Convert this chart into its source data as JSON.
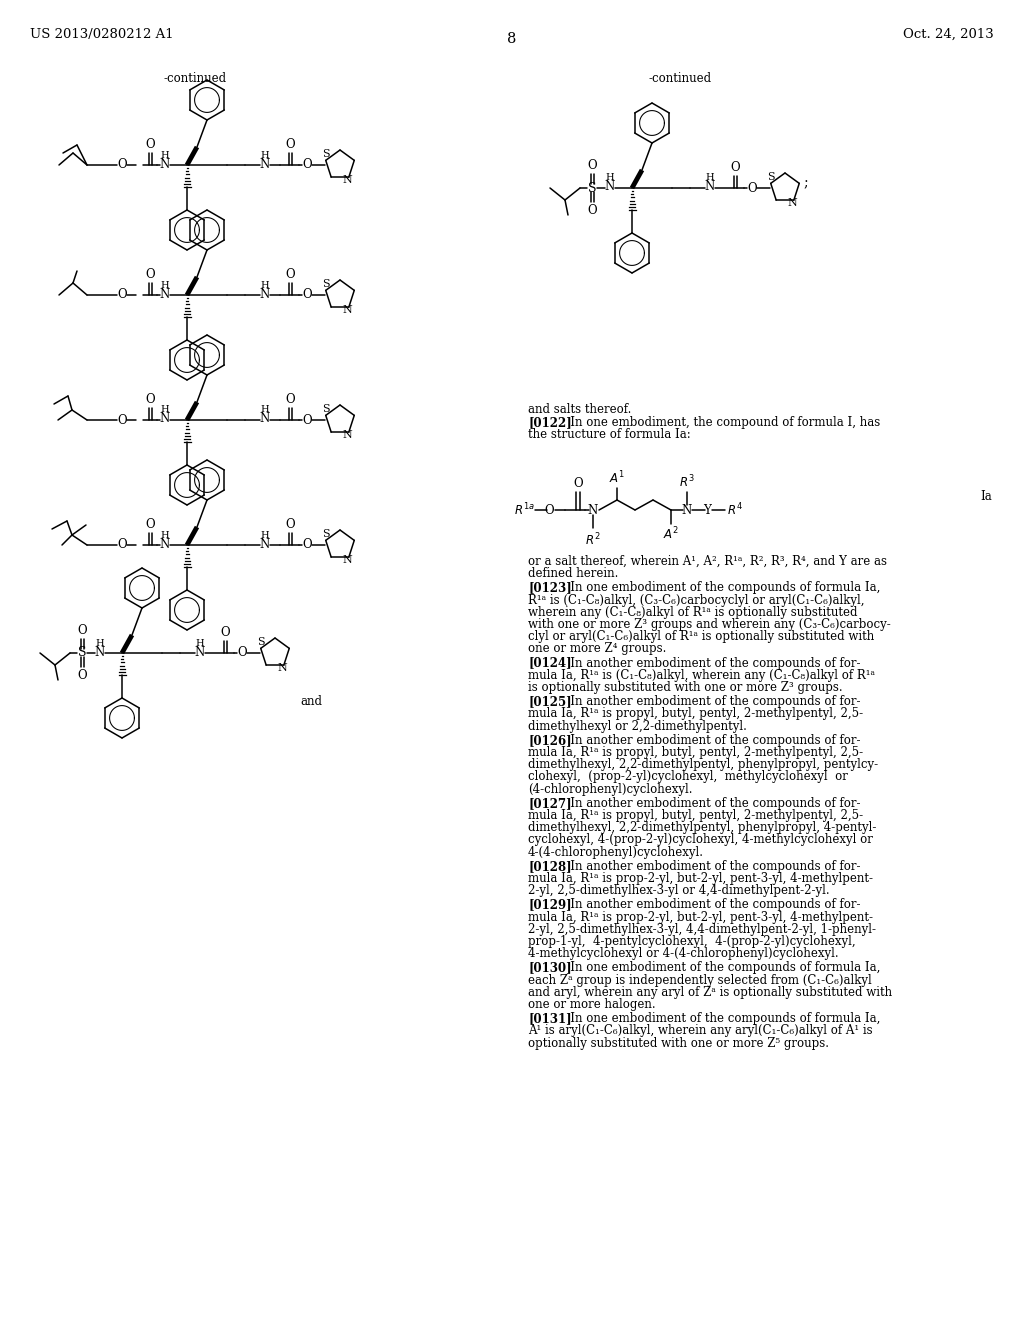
{
  "page_width": 10.24,
  "page_height": 13.2,
  "dpi": 100,
  "header_left": "US 2013/0280212 A1",
  "header_right": "Oct. 24, 2013",
  "page_number": "8",
  "left_continued": "-continued",
  "right_continued": "-continued",
  "and_salts": "and salts thereof.",
  "para_0122_bold": "[0122]",
  "para_0122": "   In one embodiment, the compound of formula I, has\nthe structure of formula Ia:",
  "or_salt": "or a salt thereof, wherein A¹, A², R¹ᵃ, R², R³, R⁴, and Y are as",
  "defined_herein": "defined herein.",
  "paragraphs": [
    {
      "num": "[0123]",
      "text": "   In one embodiment of the compounds of formula Ia,\nR¹ᵃ is (C₁-C₈)alkyl, (C₃-C₆)carbocyclyl or aryl(C₁-C₆)alkyl,\nwherein any (C₁-C₈)alkyl of R¹ᵃ is optionally substituted\nwith one or more Z³ groups and wherein any (C₃-C₆)carbocy-\nclyl or aryl(C₁-C₆)alkyl of R¹ᵃ is optionally substituted with\none or more Z⁴ groups."
    },
    {
      "num": "[0124]",
      "text": "   In another embodiment of the compounds of for-\nmula Ia, R¹ᵃ is (C₁-C₈)alkyl, wherein any (C₁-C₈)alkyl of R¹ᵃ\nis optionally substituted with one or more Z³ groups."
    },
    {
      "num": "[0125]",
      "text": "   In another embodiment of the compounds of for-\nmula Ia, R¹ᵃ is propyl, butyl, pentyl, 2-methylpentyl, 2,5-\ndimethylhexyl or 2,2-dimethylpentyl."
    },
    {
      "num": "[0126]",
      "text": "   In another embodiment of the compounds of for-\nmula Ia, R¹ᵃ is propyl, butyl, pentyl, 2-methylpentyl, 2,5-\ndimethylhexyl, 2,2-dimethylpentyl, phenylpropyl, pentylcy-\nclohexyl,  (prop-2-yl)cyclohexyl,  methylcyclohexyl  or\n(4-chlorophenyl)cyclohexyl."
    },
    {
      "num": "[0127]",
      "text": "   In another embodiment of the compounds of for-\nmula Ia, R¹ᵃ is propyl, butyl, pentyl, 2-methylpentyl, 2,5-\ndimethylhexyl, 2,2-dimethylpentyl, phenylpropyl, 4-pentyl-\ncyclohexyl, 4-(prop-2-yl)cyclohexyl, 4-methylcyclohexyl or\n4-(4-chlorophenyl)cyclohexyl."
    },
    {
      "num": "[0128]",
      "text": "   In another embodiment of the compounds of for-\nmula Ia, R¹ᵃ is prop-2-yl, but-2-yl, pent-3-yl, 4-methylpent-\n2-yl, 2,5-dimethylhex-3-yl or 4,4-dimethylpent-2-yl."
    },
    {
      "num": "[0129]",
      "text": "   In another embodiment of the compounds of for-\nmula Ia, R¹ᵃ is prop-2-yl, but-2-yl, pent-3-yl, 4-methylpent-\n2-yl, 2,5-dimethylhex-3-yl, 4,4-dimethylpent-2-yl, 1-phenyl-\nprop-1-yl,  4-pentylcyclohexyl,  4-(prop-2-yl)cyclohexyl,\n4-methylcyclohexyl or 4-(4-chlorophenyl)cyclohexyl."
    },
    {
      "num": "[0130]",
      "text": "   In one embodiment of the compounds of formula Ia,\neach Zᵃ group is independently selected from (C₁-C₆)alkyl\nand aryl, wherein any aryl of Zᵃ is optionally substituted with\none or more halogen."
    },
    {
      "num": "[0131]",
      "text": "   In one embodiment of the compounds of formula Ia,\nA¹ is aryl(C₁-C₆)alkyl, wherein any aryl(C₁-C₆)alkyl of A¹ is\noptionally substituted with one or more Z⁵ groups."
    }
  ]
}
